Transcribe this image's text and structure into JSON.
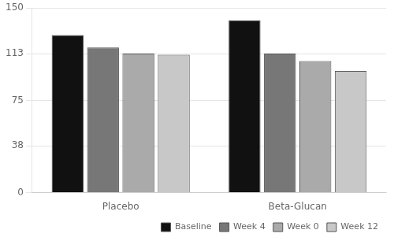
{
  "chart_data": {
    "type": "bar",
    "categories": [
      "Placebo",
      "Beta-Glucan"
    ],
    "series": [
      {
        "name": "Baseline",
        "color": "#111111",
        "values": [
          128,
          140
        ]
      },
      {
        "name": "Week 4",
        "color": "#777777",
        "values": [
          118,
          113
        ]
      },
      {
        "name": "Week 0",
        "color": "#aaaaaa",
        "values": [
          113,
          107
        ]
      },
      {
        "name": "Week 12",
        "color": "#c8c8c8",
        "values": [
          112,
          99
        ]
      }
    ],
    "ylim": [
      0,
      150
    ],
    "yticks": [
      0,
      38,
      75,
      113,
      150
    ],
    "grid": true,
    "legend": "lower right"
  }
}
